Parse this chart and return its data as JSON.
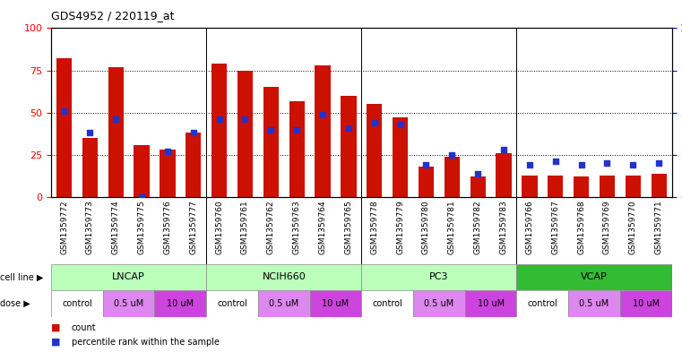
{
  "title": "GDS4952 / 220119_at",
  "samples": [
    "GSM1359772",
    "GSM1359773",
    "GSM1359774",
    "GSM1359775",
    "GSM1359776",
    "GSM1359777",
    "GSM1359760",
    "GSM1359761",
    "GSM1359762",
    "GSM1359763",
    "GSM1359764",
    "GSM1359765",
    "GSM1359778",
    "GSM1359779",
    "GSM1359780",
    "GSM1359781",
    "GSM1359782",
    "GSM1359783",
    "GSM1359766",
    "GSM1359767",
    "GSM1359768",
    "GSM1359769",
    "GSM1359770",
    "GSM1359771"
  ],
  "red_values": [
    82,
    35,
    77,
    31,
    28,
    38,
    79,
    75,
    65,
    57,
    78,
    60,
    55,
    47,
    18,
    24,
    12,
    26,
    13,
    13,
    12,
    13,
    13,
    14
  ],
  "blue_values": [
    51,
    38,
    46,
    0,
    27,
    38,
    46,
    46,
    40,
    40,
    49,
    41,
    44,
    43,
    19,
    25,
    14,
    28,
    19,
    21,
    19,
    20,
    19,
    20
  ],
  "cell_lines": [
    {
      "label": "LNCAP",
      "start": 0,
      "end": 6
    },
    {
      "label": "NCIH660",
      "start": 6,
      "end": 12
    },
    {
      "label": "PC3",
      "start": 12,
      "end": 18
    },
    {
      "label": "VCAP",
      "start": 18,
      "end": 24
    }
  ],
  "doses": [
    {
      "label": "control",
      "start": 0,
      "end": 2
    },
    {
      "label": "0.5 uM",
      "start": 2,
      "end": 4
    },
    {
      "label": "10 uM",
      "start": 4,
      "end": 6
    },
    {
      "label": "control",
      "start": 6,
      "end": 8
    },
    {
      "label": "0.5 uM",
      "start": 8,
      "end": 10
    },
    {
      "label": "10 uM",
      "start": 10,
      "end": 12
    },
    {
      "label": "control",
      "start": 12,
      "end": 14
    },
    {
      "label": "0.5 uM",
      "start": 14,
      "end": 16
    },
    {
      "label": "10 uM",
      "start": 16,
      "end": 18
    },
    {
      "label": "control",
      "start": 18,
      "end": 20
    },
    {
      "label": "0.5 uM",
      "start": 20,
      "end": 22
    },
    {
      "label": "10 uM",
      "start": 22,
      "end": 24
    }
  ],
  "bar_color": "#cc1100",
  "blue_color": "#2233cc",
  "cl_colors": [
    "#bbffbb",
    "#bbffbb",
    "#bbffbb",
    "#33bb33"
  ],
  "dose_colors": {
    "control": "#ffffff",
    "0.5 uM": "#dd88ee",
    "10 uM": "#cc44dd"
  },
  "yticks": [
    0,
    25,
    50,
    75,
    100
  ],
  "legend_count": "count",
  "legend_pct": "percentile rank within the sample"
}
